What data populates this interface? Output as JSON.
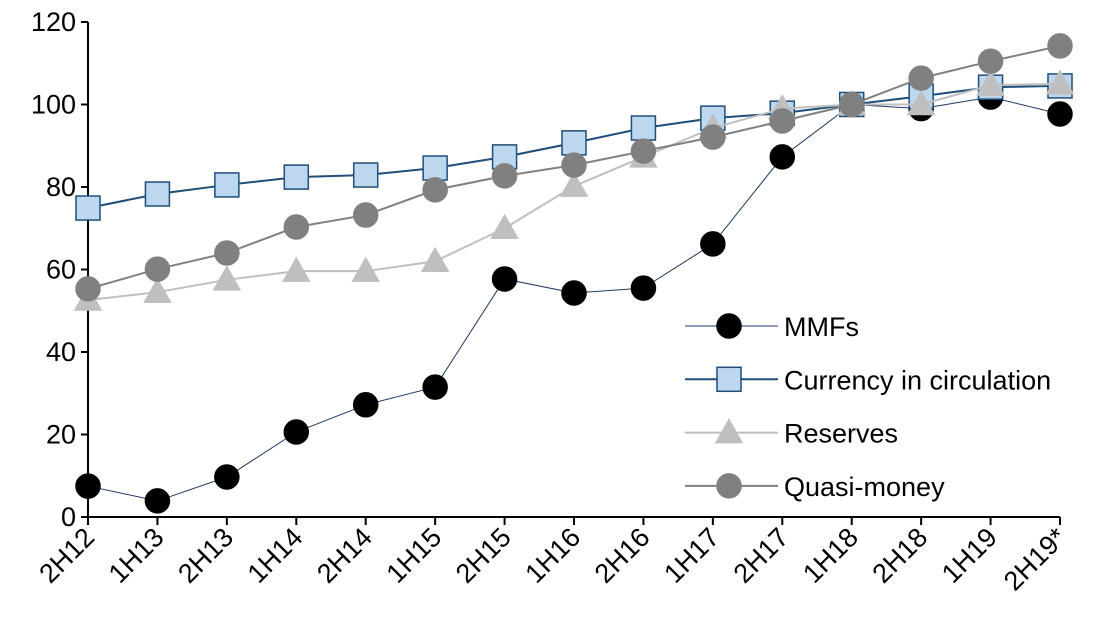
{
  "chart_data": {
    "type": "line",
    "categories": [
      "2H12",
      "1H13",
      "2H13",
      "1H14",
      "2H14",
      "1H15",
      "2H15",
      "1H16",
      "2H16",
      "1H17",
      "2H17",
      "1H18",
      "2H18",
      "1H19",
      "2H19*"
    ],
    "series": [
      {
        "name": "MMFs",
        "color": "#1f3864",
        "marker": "circle",
        "marker_fill": "#000000",
        "values": [
          7.5,
          3.9,
          9.7,
          20.6,
          27.2,
          31.5,
          57.7,
          54.3,
          55.5,
          66.2,
          87.3,
          100,
          99,
          101.8,
          97.7
        ]
      },
      {
        "name": "Currency in circulation",
        "color": "#1f4e79",
        "marker": "square",
        "marker_fill": "#bdd7ee",
        "values": [
          74.9,
          78.3,
          80.5,
          82.4,
          82.9,
          84.6,
          87.3,
          90.7,
          94.3,
          96.7,
          97.9,
          100,
          102,
          104.2,
          104.5
        ]
      },
      {
        "name": "Reserves",
        "color": "#bfbfbf",
        "marker": "triangle",
        "marker_fill": "#bfbfbf",
        "values": [
          52.6,
          54.5,
          57.5,
          59.6,
          59.6,
          62,
          70,
          80.2,
          87.3,
          94.3,
          99,
          100,
          100,
          104.7,
          105
        ]
      },
      {
        "name": "Quasi-money",
        "color": "#808080",
        "marker": "circle",
        "marker_fill": "#808080",
        "values": [
          55.3,
          60.1,
          64,
          70.3,
          73.2,
          79.3,
          82.7,
          85.3,
          88.7,
          92.1,
          96,
          100,
          106.4,
          110.5,
          114.2
        ]
      }
    ],
    "ylim": [
      0,
      120
    ],
    "yticks": [
      0,
      20,
      40,
      60,
      80,
      100,
      120
    ],
    "legend": "lower right"
  }
}
